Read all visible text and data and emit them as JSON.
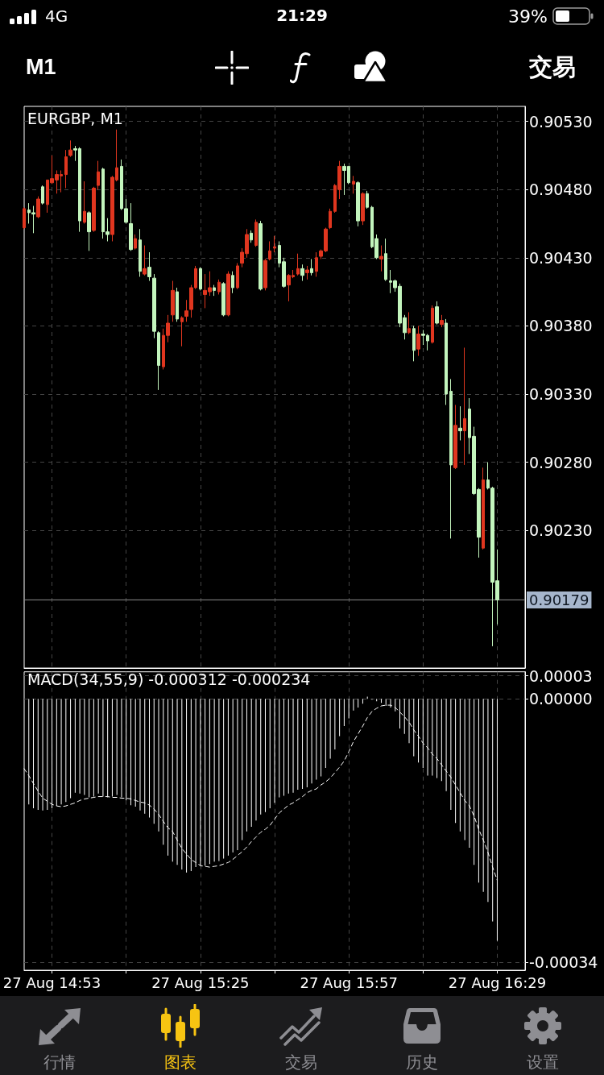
{
  "chart_data": [
    {
      "type": "candlestick",
      "title": "EURGBP, M1",
      "x": [
        "--08-27T14:47",
        "--08-27T14:48",
        "--08-27T14:49",
        "--08-27T14:50",
        "--08-27T14:51",
        "--08-27T14:52",
        "--08-27T14:53",
        "--08-27T14:54",
        "--08-27T14:55",
        "--08-27T14:56",
        "--08-27T14:57",
        "--08-27T14:58",
        "--08-27T14:59",
        "--08-27T15:00",
        "--08-27T15:01",
        "--08-27T15:02",
        "--08-27T15:03",
        "--08-27T15:04",
        "--08-27T15:05",
        "--08-27T15:06",
        "--08-27T15:07",
        "--08-27T15:08",
        "--08-27T15:09",
        "--08-27T15:10",
        "--08-27T15:11",
        "--08-27T15:12",
        "--08-27T15:13",
        "--08-27T15:14",
        "--08-27T15:15",
        "--08-27T15:16",
        "--08-27T15:17",
        "--08-27T15:18",
        "--08-27T15:19",
        "--08-27T15:20",
        "--08-27T15:21",
        "--08-27T15:22",
        "--08-27T15:23",
        "--08-27T15:24",
        "--08-27T15:25",
        "--08-27T15:26",
        "--08-27T15:27",
        "--08-27T15:28",
        "--08-27T15:29",
        "--08-27T15:30",
        "--08-27T15:31",
        "--08-27T15:32",
        "--08-27T15:33",
        "--08-27T15:34",
        "--08-27T15:35",
        "--08-27T15:36",
        "--08-27T15:37",
        "--08-27T15:38",
        "--08-27T15:39",
        "--08-27T15:40",
        "--08-27T15:41",
        "--08-27T15:42",
        "--08-27T15:43",
        "--08-27T15:44",
        "--08-27T15:45",
        "--08-27T15:46",
        "--08-27T15:47",
        "--08-27T15:48",
        "--08-27T15:49",
        "--08-27T15:50",
        "--08-27T15:51",
        "--08-27T15:52",
        "--08-27T15:53",
        "--08-27T15:54",
        "--08-27T15:55",
        "--08-27T15:56",
        "--08-27T15:57",
        "--08-27T15:58",
        "--08-27T15:59",
        "--08-27T16:00",
        "--08-27T16:01",
        "--08-27T16:02",
        "--08-27T16:03",
        "--08-27T16:04",
        "--08-27T16:05",
        "--08-27T16:06",
        "--08-27T16:07",
        "--08-27T16:08",
        "--08-27T16:09",
        "--08-27T16:10",
        "--08-27T16:11",
        "--08-27T16:12",
        "--08-27T16:13",
        "--08-27T16:14",
        "--08-27T16:15",
        "--08-27T16:16",
        "--08-27T16:17",
        "--08-27T16:18",
        "--08-27T16:19",
        "--08-27T16:20",
        "--08-27T16:21",
        "--08-27T16:22",
        "--08-27T16:23",
        "--08-27T16:24",
        "--08-27T16:25",
        "--08-27T16:26",
        "--08-27T16:27",
        "--08-27T16:28",
        "--08-27T16:29"
      ],
      "ohlc": [
        [
          0.90452,
          0.90467,
          0.90451,
          0.90466
        ],
        [
          0.90465,
          0.9047,
          0.90455,
          0.90463
        ],
        [
          0.90463,
          0.90468,
          0.90448,
          0.90462
        ],
        [
          0.9046,
          0.90475,
          0.90459,
          0.90473
        ],
        [
          0.90482,
          0.90483,
          0.90469,
          0.9047
        ],
        [
          0.90469,
          0.90487,
          0.90463,
          0.90487
        ],
        [
          0.90485,
          0.90505,
          0.90484,
          0.90488
        ],
        [
          0.90487,
          0.90494,
          0.90477,
          0.90491
        ],
        [
          0.9049,
          0.90494,
          0.90478,
          0.90491
        ],
        [
          0.90491,
          0.90509,
          0.90481,
          0.90504
        ],
        [
          0.90505,
          0.90516,
          0.90504,
          0.90509
        ],
        [
          0.9051,
          0.90512,
          0.90501,
          0.90509
        ],
        [
          0.9051,
          0.90511,
          0.90449,
          0.90457
        ],
        [
          0.90456,
          0.90486,
          0.90455,
          0.90464
        ],
        [
          0.90463,
          0.90464,
          0.90435,
          0.90449
        ],
        [
          0.9045,
          0.90482,
          0.90449,
          0.90481
        ],
        [
          0.90483,
          0.90501,
          0.9048,
          0.90493
        ],
        [
          0.90495,
          0.90496,
          0.90444,
          0.90449
        ],
        [
          0.90449,
          0.90459,
          0.90442,
          0.90447
        ],
        [
          0.90447,
          0.9049,
          0.90442,
          0.90489
        ],
        [
          0.90487,
          0.90524,
          0.90486,
          0.90496
        ],
        [
          0.90497,
          0.90502,
          0.90465,
          0.90466
        ],
        [
          0.90466,
          0.90473,
          0.90455,
          0.90456
        ],
        [
          0.90455,
          0.9047,
          0.90435,
          0.90436
        ],
        [
          0.90437,
          0.90447,
          0.90436,
          0.90444
        ],
        [
          0.90443,
          0.90451,
          0.90416,
          0.9042
        ],
        [
          0.90418,
          0.90439,
          0.90417,
          0.90422
        ],
        [
          0.90423,
          0.90434,
          0.90413,
          0.90416
        ],
        [
          0.90415,
          0.90418,
          0.90371,
          0.90376
        ],
        [
          0.90375,
          0.90376,
          0.90333,
          0.90351
        ],
        [
          0.9035,
          0.90378,
          0.90348,
          0.90373
        ],
        [
          0.90373,
          0.90388,
          0.90368,
          0.90382
        ],
        [
          0.90388,
          0.90413,
          0.90383,
          0.90406
        ],
        [
          0.90405,
          0.90408,
          0.90383,
          0.90385
        ],
        [
          0.90383,
          0.90387,
          0.90365,
          0.90386
        ],
        [
          0.90387,
          0.90399,
          0.90383,
          0.90391
        ],
        [
          0.90392,
          0.9041,
          0.90386,
          0.90408
        ],
        [
          0.90408,
          0.90424,
          0.90407,
          0.90422
        ],
        [
          0.90422,
          0.90423,
          0.90406,
          0.90407
        ],
        [
          0.90403,
          0.90418,
          0.90393,
          0.90406
        ],
        [
          0.90405,
          0.9042,
          0.90402,
          0.90408
        ],
        [
          0.90408,
          0.9041,
          0.90402,
          0.90406
        ],
        [
          0.90405,
          0.90414,
          0.90403,
          0.90412
        ],
        [
          0.90411,
          0.90412,
          0.90387,
          0.90388
        ],
        [
          0.90388,
          0.9042,
          0.90387,
          0.90418
        ],
        [
          0.90417,
          0.9042,
          0.90404,
          0.90408
        ],
        [
          0.90408,
          0.90426,
          0.90407,
          0.90424
        ],
        [
          0.90426,
          0.90437,
          0.90423,
          0.90434
        ],
        [
          0.90433,
          0.90451,
          0.9043,
          0.90447
        ],
        [
          0.90448,
          0.9045,
          0.90441,
          0.90443
        ],
        [
          0.90439,
          0.90458,
          0.90438,
          0.90456
        ],
        [
          0.90455,
          0.90457,
          0.90406,
          0.90407
        ],
        [
          0.90408,
          0.90429,
          0.90406,
          0.90428
        ],
        [
          0.90429,
          0.90442,
          0.90428,
          0.90435
        ],
        [
          0.90437,
          0.90446,
          0.90434,
          0.90438
        ],
        [
          0.90439,
          0.90442,
          0.90423,
          0.90426
        ],
        [
          0.90427,
          0.9043,
          0.90408,
          0.90409
        ],
        [
          0.9041,
          0.90418,
          0.90398,
          0.90417
        ],
        [
          0.90416,
          0.90421,
          0.90415,
          0.90417
        ],
        [
          0.90418,
          0.90433,
          0.90417,
          0.90422
        ],
        [
          0.90422,
          0.90425,
          0.90413,
          0.90417
        ],
        [
          0.90419,
          0.90424,
          0.90414,
          0.90421
        ],
        [
          0.90422,
          0.90429,
          0.90417,
          0.90419
        ],
        [
          0.9042,
          0.90434,
          0.90416,
          0.9043
        ],
        [
          0.90431,
          0.90436,
          0.90429,
          0.90435
        ],
        [
          0.90435,
          0.90452,
          0.90434,
          0.90451
        ],
        [
          0.90452,
          0.90466,
          0.90451,
          0.90464
        ],
        [
          0.90464,
          0.90484,
          0.90463,
          0.90483
        ],
        [
          0.9048,
          0.90501,
          0.90473,
          0.90497
        ],
        [
          0.90497,
          0.90499,
          0.90476,
          0.90494
        ],
        [
          0.90497,
          0.90497,
          0.90484,
          0.90485
        ],
        [
          0.90484,
          0.9049,
          0.90477,
          0.90486
        ],
        [
          0.90485,
          0.90486,
          0.90453,
          0.90457
        ],
        [
          0.90457,
          0.90478,
          0.90454,
          0.90477
        ],
        [
          0.90477,
          0.90479,
          0.90466,
          0.90467
        ],
        [
          0.90467,
          0.90468,
          0.90437,
          0.90438
        ],
        [
          0.90444,
          0.90447,
          0.90429,
          0.9043
        ],
        [
          0.90429,
          0.90439,
          0.9042,
          0.90431
        ],
        [
          0.90433,
          0.90444,
          0.90413,
          0.90414
        ],
        [
          0.90413,
          0.90421,
          0.90404,
          0.90412
        ],
        [
          0.90413,
          0.90414,
          0.90405,
          0.90408
        ],
        [
          0.90409,
          0.90411,
          0.90379,
          0.90382
        ],
        [
          0.90386,
          0.90388,
          0.9037,
          0.90375
        ],
        [
          0.90375,
          0.9039,
          0.90374,
          0.90378
        ],
        [
          0.90378,
          0.9038,
          0.90354,
          0.90362
        ],
        [
          0.90363,
          0.9038,
          0.90358,
          0.90374
        ],
        [
          0.90374,
          0.90377,
          0.90366,
          0.90373
        ],
        [
          0.90373,
          0.90374,
          0.90362,
          0.90369
        ],
        [
          0.90368,
          0.90395,
          0.90367,
          0.90393
        ],
        [
          0.90394,
          0.90398,
          0.90381,
          0.90382
        ],
        [
          0.90381,
          0.90388,
          0.90379,
          0.90384
        ],
        [
          0.90382,
          0.90385,
          0.90322,
          0.9033
        ],
        [
          0.90332,
          0.90341,
          0.90224,
          0.90278
        ],
        [
          0.90276,
          0.90322,
          0.90275,
          0.90307
        ],
        [
          0.90305,
          0.90321,
          0.90296,
          0.90303
        ],
        [
          0.90303,
          0.90364,
          0.90278,
          0.90312
        ],
        [
          0.90319,
          0.90327,
          0.90286,
          0.90298
        ],
        [
          0.90299,
          0.90306,
          0.90256,
          0.90257
        ],
        [
          0.9026,
          0.90261,
          0.9021,
          0.90225
        ],
        [
          0.90217,
          0.90276,
          0.90216,
          0.90267
        ],
        [
          0.90267,
          0.9028,
          0.9026,
          0.90261
        ],
        [
          0.90261,
          0.90262,
          0.90145,
          0.90192
        ],
        [
          0.90193,
          0.90216,
          0.90161,
          0.90179
        ]
      ],
      "colors": [
        "#e0361f",
        "#c3f5bd",
        "#c3f5bd",
        "#e0361f",
        "#c3f5bd",
        "#e0361f",
        "#e0361f",
        "#e0361f",
        "#e0361f",
        "#e0361f",
        "#e0361f",
        "#c3f5bd",
        "#c3f5bd",
        "#e0361f",
        "#c3f5bd",
        "#e0361f",
        "#e0361f",
        "#c3f5bd",
        "#c3f5bd",
        "#e0361f",
        "#e0361f",
        "#c3f5bd",
        "#c3f5bd",
        "#c3f5bd",
        "#e0361f",
        "#c3f5bd",
        "#e0361f",
        "#c3f5bd",
        "#c3f5bd",
        "#c3f5bd",
        "#e0361f",
        "#e0361f",
        "#e0361f",
        "#c3f5bd",
        "#e0361f",
        "#e0361f",
        "#e0361f",
        "#e0361f",
        "#c3f5bd",
        "#e0361f",
        "#e0361f",
        "#c3f5bd",
        "#e0361f",
        "#c3f5bd",
        "#e0361f",
        "#c3f5bd",
        "#e0361f",
        "#e0361f",
        "#e0361f",
        "#c3f5bd",
        "#e0361f",
        "#c3f5bd",
        "#e0361f",
        "#e0361f",
        "#e0361f",
        "#c3f5bd",
        "#c3f5bd",
        "#e0361f",
        "#e0361f",
        "#e0361f",
        "#c3f5bd",
        "#e0361f",
        "#c3f5bd",
        "#e0361f",
        "#e0361f",
        "#e0361f",
        "#e0361f",
        "#e0361f",
        "#e0361f",
        "#c3f5bd",
        "#c3f5bd",
        "#e0361f",
        "#c3f5bd",
        "#e0361f",
        "#c3f5bd",
        "#c3f5bd",
        "#c3f5bd",
        "#e0361f",
        "#c3f5bd",
        "#c3f5bd",
        "#c3f5bd",
        "#c3f5bd",
        "#c3f5bd",
        "#e0361f",
        "#c3f5bd",
        "#e0361f",
        "#c3f5bd",
        "#c3f5bd",
        "#e0361f",
        "#c3f5bd",
        "#e0361f",
        "#c3f5bd",
        "#c3f5bd",
        "#e0361f",
        "#c3f5bd",
        "#e0361f",
        "#c3f5bd",
        "#c3f5bd",
        "#c3f5bd",
        "#e0361f",
        "#c3f5bd",
        "#c3f5bd",
        "#c3f5bd"
      ],
      "xlim": [
        "--08-27T14:47",
        "--08-27T16:35"
      ],
      "xticks": [
        {
          "value": "--08-27T14:53",
          "label": null
        },
        {
          "value": "--08-27T15:09",
          "label": null
        },
        {
          "value": "--08-27T15:25",
          "label": null
        },
        {
          "value": "--08-27T15:41",
          "label": null
        },
        {
          "value": "--08-27T15:57",
          "label": null
        },
        {
          "value": "--08-27T16:13",
          "label": null
        },
        {
          "value": "--08-27T16:29",
          "label": null
        }
      ],
      "ylim": [
        0.90129,
        0.90541
      ],
      "yticks": [
        {
          "value": 0.9053,
          "label": "0.90530"
        },
        {
          "value": 0.9048,
          "label": "0.90480"
        },
        {
          "value": 0.9043,
          "label": "0.90430"
        },
        {
          "value": 0.9038,
          "label": "0.90380"
        },
        {
          "value": 0.9033,
          "label": "0.90330"
        },
        {
          "value": 0.9028,
          "label": "0.90280"
        },
        {
          "value": 0.9023,
          "label": "0.90230"
        }
      ],
      "ref_lines": [
        {
          "axis": "y",
          "value": 0.90179,
          "label": "0.90179",
          "color": "#8c8c8c"
        }
      ],
      "grid": true,
      "tick_labels": "y",
      "annotations": [
        "4G",
        "21:29",
        "39%",
        "M1",
        "交易"
      ]
    },
    {
      "type": "bar",
      "title": "MACD(34,55,9) -0.000312 -0.000234",
      "x": [
        "--08-27T14:47",
        "--08-27T14:48",
        "--08-27T14:49",
        "--08-27T14:50",
        "--08-27T14:51",
        "--08-27T14:52",
        "--08-27T14:53",
        "--08-27T14:54",
        "--08-27T14:55",
        "--08-27T14:56",
        "--08-27T14:57",
        "--08-27T14:58",
        "--08-27T14:59",
        "--08-27T15:00",
        "--08-27T15:01",
        "--08-27T15:02",
        "--08-27T15:03",
        "--08-27T15:04",
        "--08-27T15:05",
        "--08-27T15:06",
        "--08-27T15:07",
        "--08-27T15:08",
        "--08-27T15:09",
        "--08-27T15:10",
        "--08-27T15:11",
        "--08-27T15:12",
        "--08-27T15:13",
        "--08-27T15:14",
        "--08-27T15:15",
        "--08-27T15:16",
        "--08-27T15:17",
        "--08-27T15:18",
        "--08-27T15:19",
        "--08-27T15:20",
        "--08-27T15:21",
        "--08-27T15:22",
        "--08-27T15:23",
        "--08-27T15:24",
        "--08-27T15:25",
        "--08-27T15:26",
        "--08-27T15:27",
        "--08-27T15:28",
        "--08-27T15:29",
        "--08-27T15:30",
        "--08-27T15:31",
        "--08-27T15:32",
        "--08-27T15:33",
        "--08-27T15:34",
        "--08-27T15:35",
        "--08-27T15:36",
        "--08-27T15:37",
        "--08-27T15:38",
        "--08-27T15:39",
        "--08-27T15:40",
        "--08-27T15:41",
        "--08-27T15:42",
        "--08-27T15:43",
        "--08-27T15:44",
        "--08-27T15:45",
        "--08-27T15:46",
        "--08-27T15:47",
        "--08-27T15:48",
        "--08-27T15:49",
        "--08-27T15:50",
        "--08-27T15:51",
        "--08-27T15:52",
        "--08-27T15:53",
        "--08-27T15:54",
        "--08-27T15:55",
        "--08-27T15:56",
        "--08-27T15:57",
        "--08-27T15:58",
        "--08-27T15:59",
        "--08-27T16:00",
        "--08-27T16:01",
        "--08-27T16:02",
        "--08-27T16:03",
        "--08-27T16:04",
        "--08-27T16:05",
        "--08-27T16:06",
        "--08-27T16:07",
        "--08-27T16:08",
        "--08-27T16:09",
        "--08-27T16:10",
        "--08-27T16:11",
        "--08-27T16:12",
        "--08-27T16:13",
        "--08-27T16:14",
        "--08-27T16:15",
        "--08-27T16:16",
        "--08-27T16:17",
        "--08-27T16:18",
        "--08-27T16:19",
        "--08-27T16:20",
        "--08-27T16:21",
        "--08-27T16:22",
        "--08-27T16:23",
        "--08-27T16:24",
        "--08-27T16:25",
        "--08-27T16:26",
        "--08-27T16:27",
        "--08-27T16:28",
        "--08-27T16:29"
      ],
      "series": [
        {
          "color": "#ffffff",
          "values": [
            null,
            -0.000136,
            -0.000141,
            -0.000143,
            -0.000144,
            -0.000143,
            -0.000141,
            -0.000138,
            -0.000136,
            -0.000133,
            -0.000128,
            -0.000121,
            -0.000122,
            -0.000124,
            -0.000127,
            -0.000126,
            -0.000122,
            -0.000126,
            -0.000127,
            -0.000126,
            -0.000124,
            -0.000127,
            -0.000131,
            -0.000137,
            -0.000139,
            -0.000144,
            -0.000148,
            -0.000153,
            -0.000161,
            -0.000171,
            -0.000188,
            -0.000202,
            -0.00021,
            -0.000214,
            -0.00022,
            -0.000224,
            -0.000222,
            -0.000217,
            -0.000215,
            -0.000215,
            -0.000213,
            -0.00021,
            -0.000209,
            -0.000206,
            -0.000202,
            -0.000198,
            -0.000195,
            -0.000182,
            -0.000171,
            -0.000165,
            -0.000157,
            -0.000149,
            -0.000146,
            -0.000141,
            -0.000134,
            -0.000127,
            -0.000125,
            -0.000122,
            -0.000121,
            -0.000117,
            -0.000116,
            -0.000114,
            -0.000109,
            -0.000104,
            -0.0001,
            -8.9e-05,
            -7.7e-05,
            -6.5e-05,
            -4.8e-05,
            -3.5e-05,
            -2.5e-05,
            -1.5e-05,
            -1.1e-05,
            -6e-06,
            3e-06,
            -1e-06,
            -3e-06,
            -5e-06,
            -9e-06,
            -1.1e-05,
            -1.6e-05,
            -3.8e-05,
            -4.5e-05,
            -5.7e-05,
            -7.4e-05,
            -8.2e-05,
            -8.9e-05,
            -9.9e-05,
            -9.9e-05,
            -0.000102,
            -0.000106,
            -0.000119,
            -0.000143,
            -0.00016,
            -0.000171,
            -0.000182,
            -0.000192,
            -0.000214,
            -0.000237,
            -0.000249,
            -0.000262,
            -0.000287,
            -0.000312
          ]
        },
        {
          "type": "line",
          "color": "#ffffff",
          "line_style": "dashed",
          "values": [
            -9e-05,
            -9.9e-05,
            -0.000109,
            -0.000119,
            -0.000128,
            -0.000132,
            -0.000136,
            -0.000138,
            -0.000139,
            -0.000138,
            -0.000136,
            -0.000134,
            -0.000131,
            -0.000129,
            -0.000128,
            -0.000127,
            -0.000126,
            -0.000126,
            -0.000126,
            -0.000127,
            -0.000127,
            -0.000128,
            -0.000128,
            -0.000129,
            -0.000131,
            -0.000133,
            -0.000134,
            -0.000137,
            -0.000142,
            -0.000149,
            -0.000158,
            -0.000166,
            -0.000171,
            -0.000182,
            -0.000193,
            -0.0002,
            -0.000207,
            -0.000211,
            -0.000215,
            -0.000216,
            -0.000217,
            -0.000216,
            -0.000215,
            -0.000213,
            -0.000211,
            -0.000207,
            -0.000202,
            -0.000197,
            -0.000191,
            -0.000184,
            -0.000178,
            -0.000172,
            -0.000168,
            -0.000163,
            -0.000155,
            -0.000147,
            -0.000142,
            -0.000137,
            -0.000134,
            -0.00013,
            -0.000126,
            -0.000121,
            -0.000118,
            -0.000116,
            -0.000111,
            -0.000107,
            -0.000102,
            -9.5e-05,
            -8.8e-05,
            -8e-05,
            -6.8e-05,
            -5.5e-05,
            -4.5e-05,
            -3.5e-05,
            -2.4e-05,
            -1.6e-05,
            -1.2e-05,
            -9e-06,
            -8e-06,
            -8e-06,
            -1.1e-05,
            -1.7e-05,
            -2.3e-05,
            -3e-05,
            -4e-05,
            -4.8e-05,
            -5.7e-05,
            -6.3e-05,
            -7.1e-05,
            -7.7e-05,
            -8.5e-05,
            -9.3e-05,
            -0.000101,
            -0.000111,
            -0.000121,
            -0.000131,
            -0.000138,
            -0.000151,
            -0.000168,
            -0.000182,
            -0.000198,
            -0.000217,
            -0.000234
          ]
        }
      ],
      "xlim": [
        "--08-27T14:47",
        "--08-27T16:35"
      ],
      "xticks": [
        {
          "value": "--08-27T14:53",
          "label": "27 Aug 14:53"
        },
        {
          "value": "--08-27T15:09",
          "label": null
        },
        {
          "value": "--08-27T15:25",
          "label": "27 Aug 15:25"
        },
        {
          "value": "--08-27T15:41",
          "label": null
        },
        {
          "value": "--08-27T15:57",
          "label": "27 Aug 15:57"
        },
        {
          "value": "--08-27T16:13",
          "label": null
        },
        {
          "value": "--08-27T16:29",
          "label": "27 Aug 16:29"
        }
      ],
      "ylim": [
        -0.00035,
        3.5e-05
      ],
      "yticks": [
        {
          "value": 3e-05,
          "label": "0.00003"
        },
        {
          "value": 0,
          "label": "0.00000"
        },
        -0.00034
      ],
      "grid": true,
      "marker": "none",
      "annotations": [
        "行情",
        "图表",
        "交易",
        "历史",
        "设置"
      ]
    }
  ]
}
